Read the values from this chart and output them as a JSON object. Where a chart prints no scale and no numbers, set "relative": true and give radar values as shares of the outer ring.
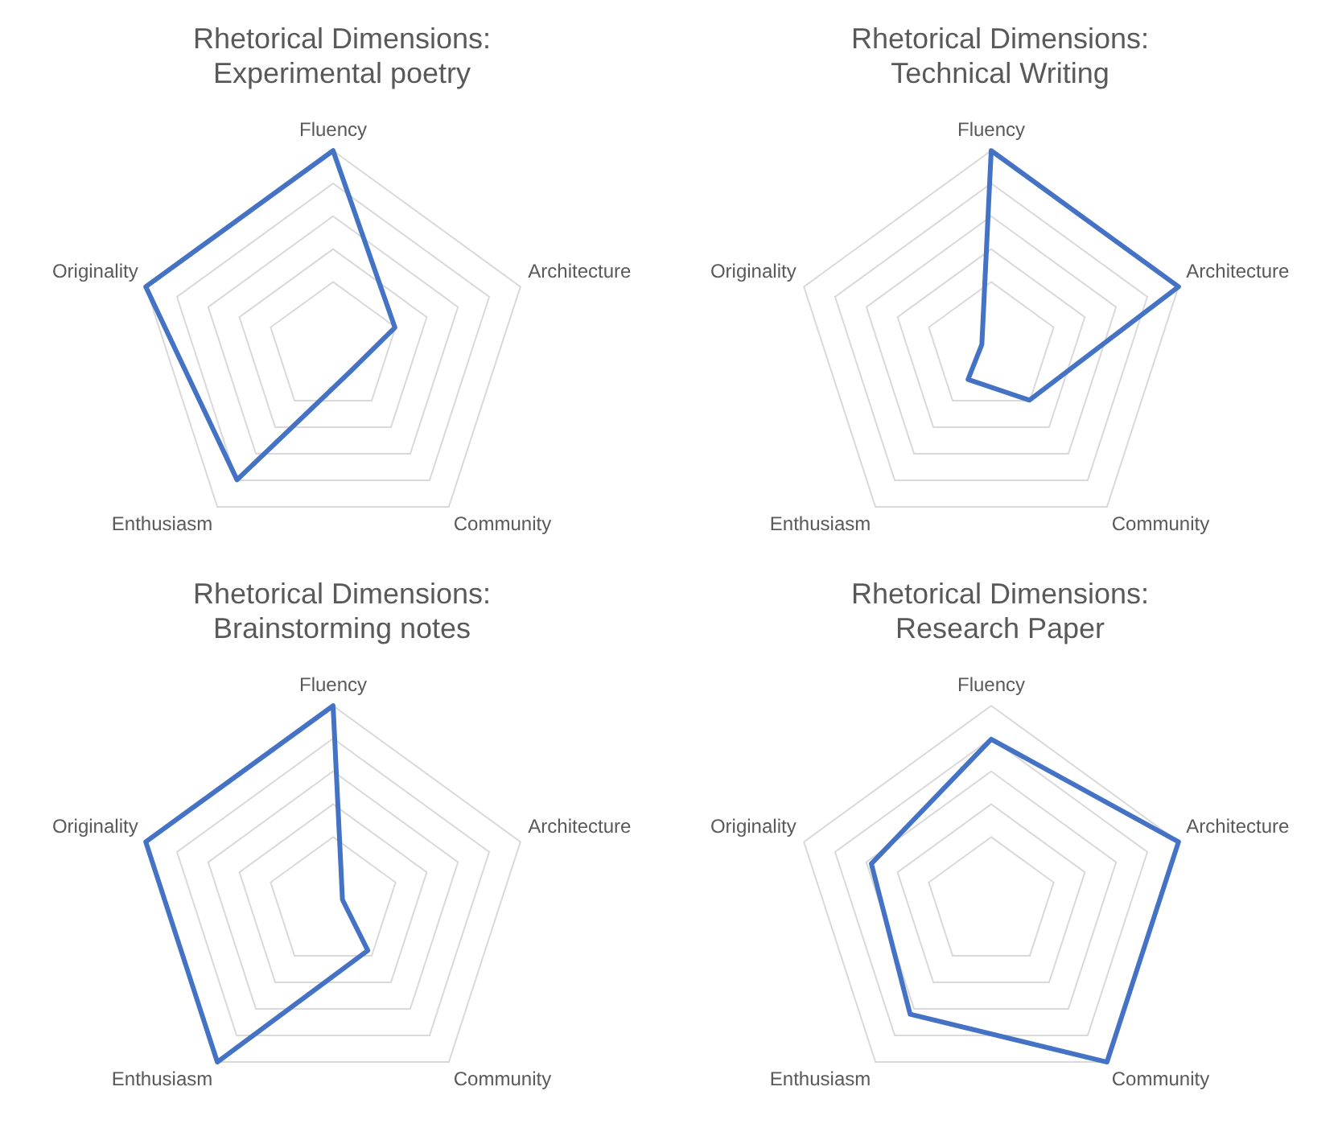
{
  "chart_data": [
    {
      "type": "radar",
      "title": "Rhetorical Dimensions:\nExperimental poetry",
      "categories": [
        "Fluency",
        "Architecture",
        "Community",
        "Enthusiasm",
        "Originality"
      ],
      "relative": true,
      "marker": "none",
      "grid": true,
      "legend": false,
      "series": [
        {
          "color": "#4472c4",
          "values": [
            1,
            0.33,
            0.15,
            0.83,
            1
          ]
        }
      ]
    },
    {
      "type": "radar",
      "title": "Rhetorical Dimensions:\nTechnical Writing",
      "categories": [
        "Fluency",
        "Architecture",
        "Community",
        "Enthusiasm",
        "Originality"
      ],
      "relative": true,
      "marker": "none",
      "grid": true,
      "legend": false,
      "series": [
        {
          "color": "#4472c4",
          "values": [
            1,
            1,
            0.33,
            0.2,
            0.05
          ]
        }
      ]
    },
    {
      "type": "radar",
      "title": "Rhetorical Dimensions:\nBrainstorming notes",
      "categories": [
        "Fluency",
        "Architecture",
        "Community",
        "Enthusiasm",
        "Originality"
      ],
      "relative": true,
      "marker": "none",
      "grid": true,
      "legend": false,
      "series": [
        {
          "color": "#4472c4",
          "values": [
            1,
            0.05,
            0.3,
            1,
            1
          ]
        }
      ]
    },
    {
      "type": "radar",
      "title": "Rhetorical Dimensions:\nResearch Paper",
      "categories": [
        "Fluency",
        "Architecture",
        "Community",
        "Enthusiasm",
        "Originality"
      ],
      "relative": true,
      "marker": "none",
      "grid": true,
      "legend": false,
      "series": [
        {
          "color": "#4472c4",
          "values": [
            0.83,
            1,
            1,
            0.7,
            0.64
          ]
        }
      ]
    }
  ]
}
